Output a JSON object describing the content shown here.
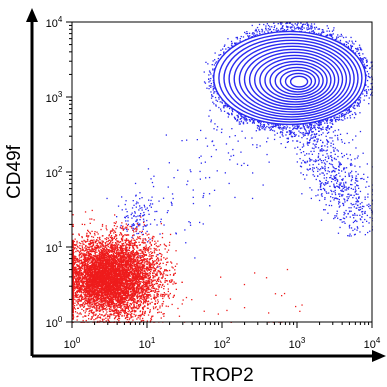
{
  "chart_data": {
    "type": "scatter",
    "subtype": "flow-cytometry density/contour plot",
    "xlabel": "TROP2",
    "ylabel": "CD49f",
    "x_scale": "log",
    "y_scale": "log",
    "xlim": [
      1,
      10000
    ],
    "ylim": [
      1,
      10000
    ],
    "x_ticks": [
      {
        "value": 1,
        "base": "10",
        "exp": "0"
      },
      {
        "value": 10,
        "base": "10",
        "exp": "1"
      },
      {
        "value": 100,
        "base": "10",
        "exp": "2"
      },
      {
        "value": 1000,
        "base": "10",
        "exp": "3"
      },
      {
        "value": 10000,
        "base": "10",
        "exp": "4"
      }
    ],
    "y_ticks": [
      {
        "value": 1,
        "base": "10",
        "exp": "0"
      },
      {
        "value": 10,
        "base": "10",
        "exp": "1"
      },
      {
        "value": 100,
        "base": "10",
        "exp": "2"
      },
      {
        "value": 1000,
        "base": "10",
        "exp": "3"
      },
      {
        "value": 10000,
        "base": "10",
        "exp": "4"
      }
    ],
    "grid": false,
    "series": [
      {
        "color": "#2a2af0",
        "marker": "dots with contour lines",
        "center": {
          "x": 800,
          "y": 1800
        },
        "spread": {
          "x": 1000,
          "y": 700
        },
        "contour_levels": 16
      },
      {
        "color": "#ee1c1c",
        "marker": "dense dots",
        "center": {
          "x": 3,
          "y": 4
        },
        "x_range": [
          1,
          25
        ],
        "y_range": [
          1,
          15
        ]
      }
    ]
  }
}
